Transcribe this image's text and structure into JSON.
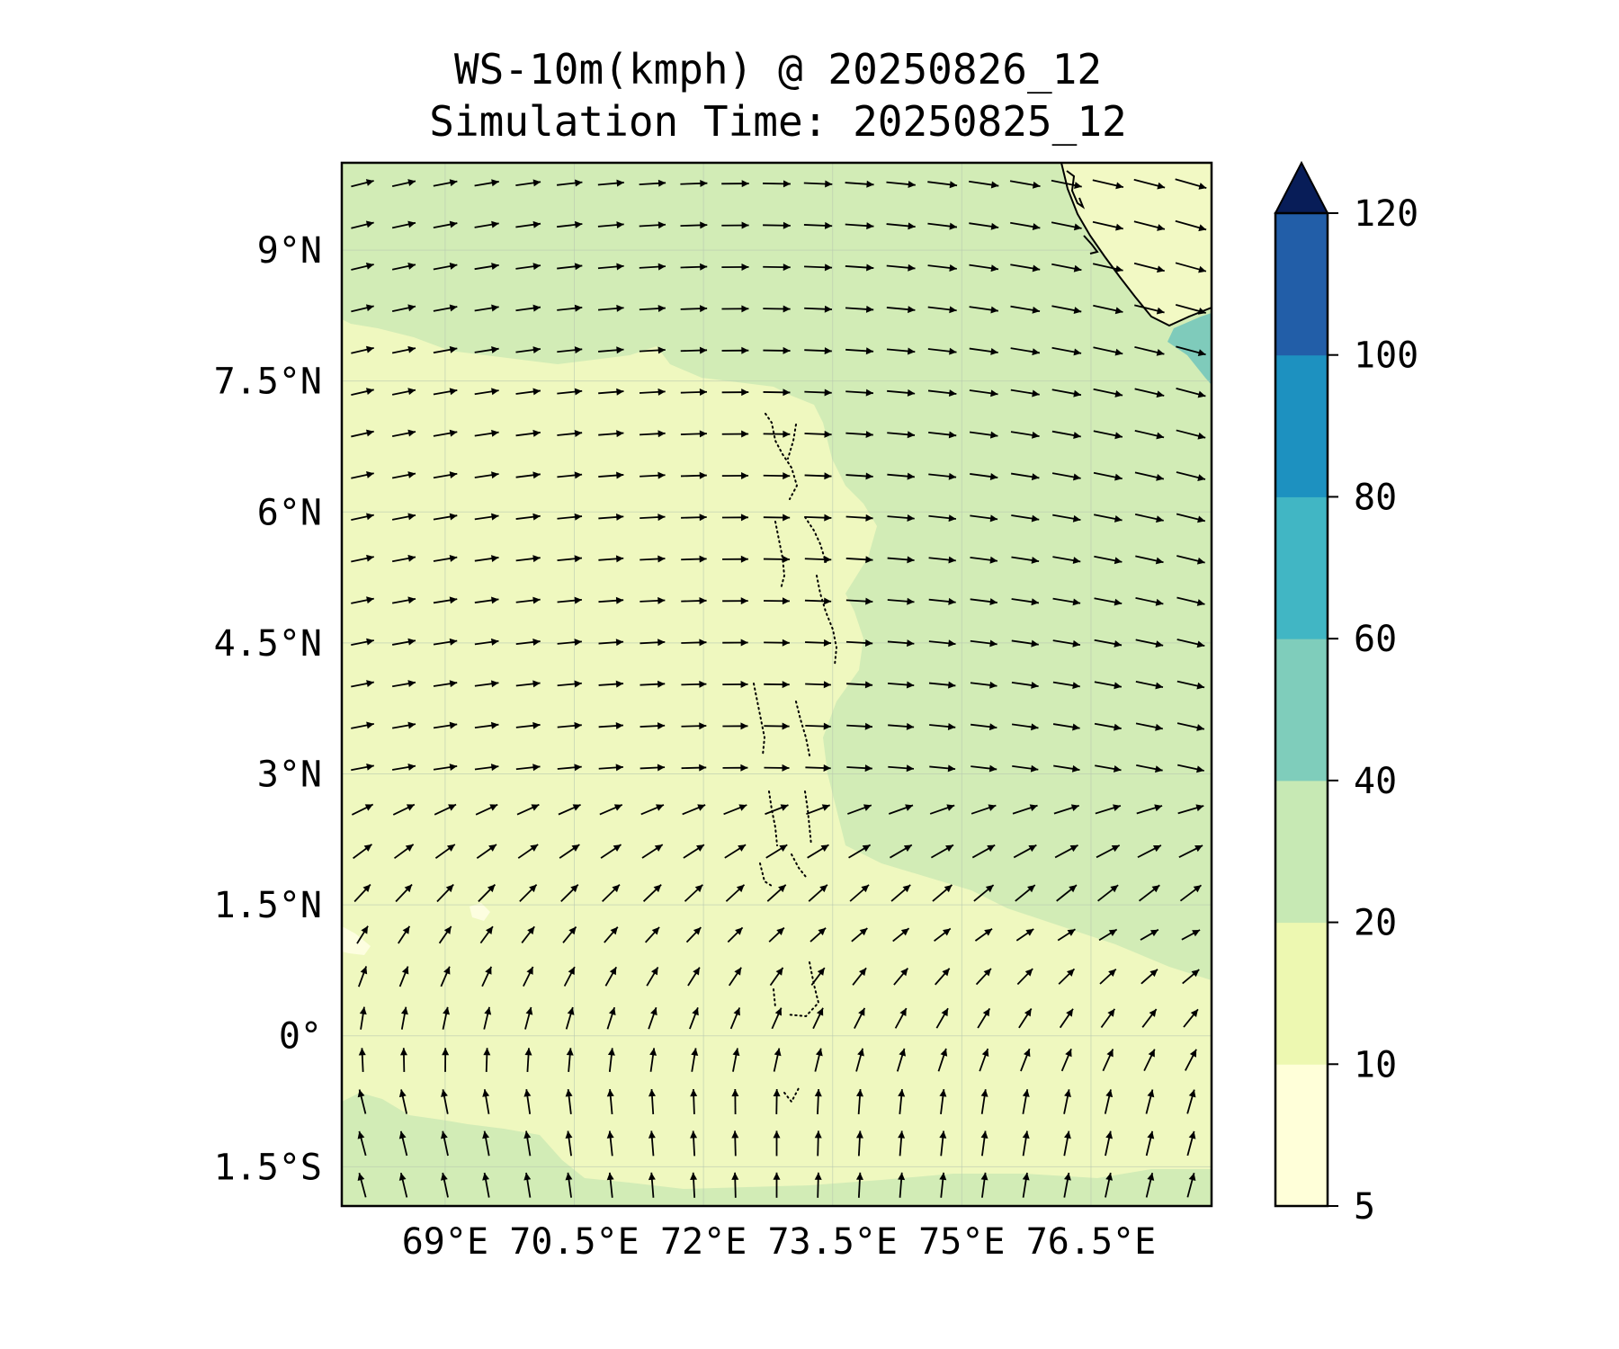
{
  "title": {
    "line1": "WS-10m(kmph) @ 20250826_12",
    "line2": "Simulation Time: 20250825_12"
  },
  "map": {
    "lon_range": [
      67.8,
      77.9
    ],
    "lat_range": [
      -1.95,
      10.0
    ],
    "lon_ticks": [
      {
        "value": 69.0,
        "label": "69°E"
      },
      {
        "value": 70.5,
        "label": "70.5°E"
      },
      {
        "value": 72.0,
        "label": "72°E"
      },
      {
        "value": 73.5,
        "label": "73.5°E"
      },
      {
        "value": 75.0,
        "label": "75°E"
      },
      {
        "value": 76.5,
        "label": "76.5°E"
      }
    ],
    "lat_ticks": [
      {
        "value": 9.0,
        "label": "9°N"
      },
      {
        "value": 7.5,
        "label": "7.5°N"
      },
      {
        "value": 6.0,
        "label": "6°N"
      },
      {
        "value": 4.5,
        "label": "4.5°N"
      },
      {
        "value": 3.0,
        "label": "3°N"
      },
      {
        "value": 1.5,
        "label": "1.5°N"
      },
      {
        "value": 0.0,
        "label": "0°"
      },
      {
        "value": -1.5,
        "label": "1.5°S"
      }
    ],
    "land_label": "Sri Lanka / southern India coastline"
  },
  "colorbar": {
    "levels": [
      5,
      10,
      20,
      40,
      60,
      80,
      100,
      120
    ],
    "tick_labels": [
      "5",
      "10",
      "20",
      "40",
      "60",
      "80",
      "100",
      "120"
    ],
    "colors": [
      "#ffffd9",
      "#edf8b1",
      "#c7e9b4",
      "#7fcdbb",
      "#41b6c4",
      "#1d91c0",
      "#225ea8",
      "#0c2c84"
    ],
    "extend_color": "#081d58"
  },
  "colors": {
    "band_10_20": "#eff8bf",
    "band_20_40": "#d2ecb6",
    "band_40_60": "#7fcbbb",
    "band_5_10": "#fdfee0",
    "arrow": "#000000"
  }
}
